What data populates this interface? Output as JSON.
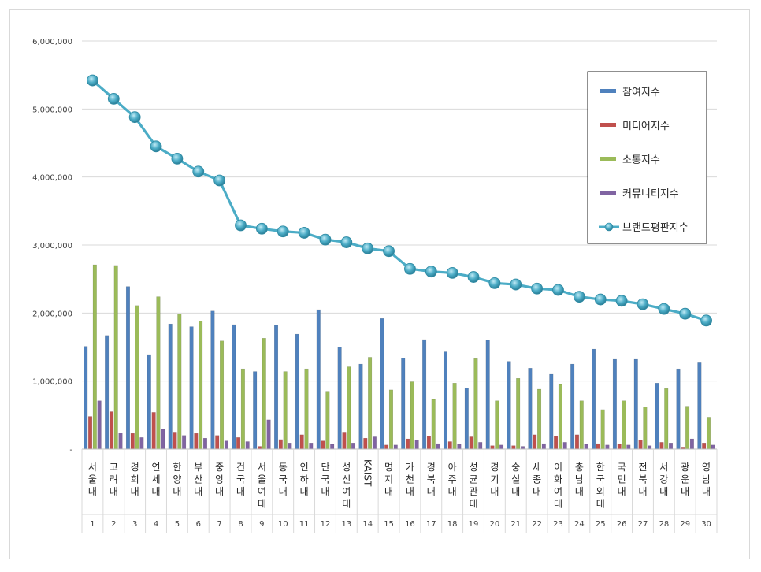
{
  "chart_data": {
    "type": "bar",
    "ylim": [
      0,
      6000000
    ],
    "yticks": [
      "-",
      "1,000,000",
      "2,000,000",
      "3,000,000",
      "4,000,000",
      "5,000,000",
      "6,000,000"
    ],
    "grid": true,
    "legend_position": "top-right",
    "categories": [
      "서울대",
      "고려대",
      "경희대",
      "연세대",
      "한양대",
      "부산대",
      "중앙대",
      "건국대",
      "서울여대",
      "동국대",
      "인하대",
      "단국대",
      "성신여대",
      "KAIST",
      "명지대",
      "가천대",
      "경북대",
      "아주대",
      "성균관대",
      "경기대",
      "숭실대",
      "세종대",
      "이화여대",
      "충남대",
      "한국외대",
      "국민대",
      "전북대",
      "서강대",
      "광운대",
      "영남대"
    ],
    "ranks": [
      "1",
      "2",
      "3",
      "4",
      "5",
      "6",
      "7",
      "8",
      "9",
      "10",
      "11",
      "12",
      "13",
      "14",
      "15",
      "16",
      "17",
      "18",
      "19",
      "20",
      "21",
      "22",
      "23",
      "24",
      "25",
      "26",
      "27",
      "28",
      "29",
      "30"
    ],
    "series": [
      {
        "name": "참여지수",
        "type": "bar",
        "color": "#4f81bd",
        "values": [
          1510000,
          1670000,
          2390000,
          1390000,
          1840000,
          1800000,
          2030000,
          1830000,
          1140000,
          1820000,
          1690000,
          2050000,
          1500000,
          1250000,
          1920000,
          1340000,
          1610000,
          1430000,
          900000,
          1600000,
          1290000,
          1190000,
          1100000,
          1250000,
          1470000,
          1320000,
          1320000,
          970000,
          1180000,
          1270000
        ]
      },
      {
        "name": "미디어지수",
        "type": "bar",
        "color": "#c0504d",
        "values": [
          480000,
          550000,
          230000,
          540000,
          250000,
          230000,
          200000,
          170000,
          40000,
          140000,
          210000,
          120000,
          250000,
          160000,
          60000,
          150000,
          190000,
          110000,
          180000,
          50000,
          50000,
          210000,
          190000,
          210000,
          80000,
          70000,
          130000,
          100000,
          30000,
          90000
        ]
      },
      {
        "name": "소통지수",
        "type": "bar",
        "color": "#9bbb59",
        "values": [
          2710000,
          2700000,
          2110000,
          2240000,
          1990000,
          1880000,
          1590000,
          1180000,
          1630000,
          1140000,
          1180000,
          850000,
          1210000,
          1350000,
          870000,
          990000,
          730000,
          970000,
          1330000,
          710000,
          1040000,
          880000,
          950000,
          710000,
          580000,
          710000,
          620000,
          890000,
          630000,
          470000
        ]
      },
      {
        "name": "커뮤니티지수",
        "type": "bar",
        "color": "#8064a2",
        "values": [
          710000,
          240000,
          170000,
          290000,
          200000,
          160000,
          120000,
          110000,
          430000,
          90000,
          90000,
          70000,
          90000,
          180000,
          60000,
          130000,
          80000,
          70000,
          100000,
          60000,
          40000,
          80000,
          100000,
          70000,
          60000,
          60000,
          50000,
          90000,
          150000,
          60000
        ]
      },
      {
        "name": "브랜드평판지수",
        "type": "line",
        "color": "#4bacc6",
        "values": [
          5420000,
          5150000,
          4880000,
          4450000,
          4270000,
          4080000,
          3950000,
          3290000,
          3240000,
          3200000,
          3180000,
          3080000,
          3040000,
          2950000,
          2910000,
          2650000,
          2610000,
          2590000,
          2530000,
          2440000,
          2420000,
          2360000,
          2340000,
          2240000,
          2200000,
          2180000,
          2130000,
          2060000,
          1990000,
          1890000
        ]
      }
    ]
  }
}
